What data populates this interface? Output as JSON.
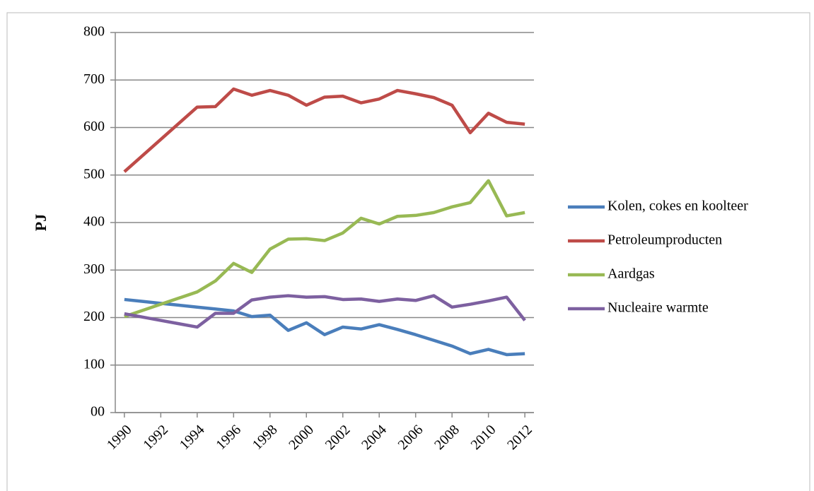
{
  "chart_data": {
    "type": "line",
    "y_label": "PJ",
    "x": [
      1990,
      1991,
      1992,
      1993,
      1994,
      1995,
      1996,
      1997,
      1998,
      1999,
      2000,
      2001,
      2002,
      2003,
      2004,
      2005,
      2006,
      2007,
      2008,
      2009,
      2010,
      2011,
      2012
    ],
    "xlim": [
      1989.5,
      2012.5
    ],
    "xticks": [
      1990,
      1992,
      1994,
      1996,
      1998,
      2000,
      2002,
      2004,
      2006,
      2008,
      2010,
      2012
    ],
    "ylim": [
      0,
      800
    ],
    "yticks": [
      {
        "value": 0,
        "label": "00"
      },
      100,
      200,
      300,
      400,
      500,
      600,
      700,
      800
    ],
    "grid": true,
    "legend": "right",
    "series": [
      {
        "name": "Kolen, cokes en koolteer",
        "color": "#4a7ebb",
        "values": [
          238,
          234,
          230,
          226,
          222,
          218,
          214,
          202,
          205,
          173,
          189,
          164,
          180,
          176,
          185,
          175,
          164,
          152,
          140,
          124,
          133,
          122,
          124
        ]
      },
      {
        "name": "Petroleumproducten",
        "color": "#be4b48",
        "values": [
          507,
          541,
          575,
          609,
          643,
          644,
          681,
          668,
          678,
          668,
          647,
          664,
          666,
          652,
          660,
          678,
          671,
          663,
          647,
          589,
          630,
          611,
          607
        ]
      },
      {
        "name": "Aardgas",
        "color": "#98b954",
        "values": [
          202,
          215,
          228,
          241,
          254,
          277,
          314,
          295,
          344,
          365,
          366,
          362,
          378,
          409,
          397,
          413,
          415,
          421,
          433,
          442,
          488,
          414,
          421
        ]
      },
      {
        "name": "Nucleaire warmte",
        "color": "#7d60a0",
        "values": [
          208,
          201,
          194,
          187,
          180,
          209,
          209,
          237,
          243,
          246,
          243,
          244,
          238,
          239,
          234,
          239,
          236,
          246,
          222,
          228,
          235,
          243,
          194
        ]
      }
    ]
  }
}
